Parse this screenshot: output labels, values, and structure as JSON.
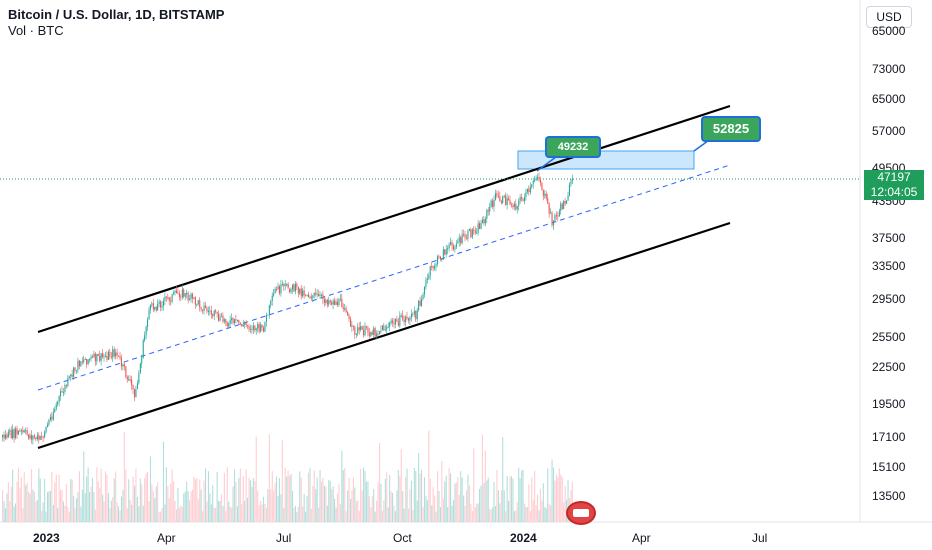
{
  "header": {
    "title": "Bitcoin / U.S. Dollar, 1D, BITSTAMP",
    "volume_label": "Vol · BTC"
  },
  "currency_button": "USD",
  "price_axis": [
    "65000",
    "73000",
    "65000",
    "57000",
    "49500",
    "43500",
    "37500",
    "33500",
    "29500",
    "25500",
    "22500",
    "19500",
    "17100",
    "15100",
    "13500"
  ],
  "time_axis": [
    {
      "label": "2023",
      "bold": true
    },
    {
      "label": "Apr",
      "bold": false
    },
    {
      "label": "Jul",
      "bold": false
    },
    {
      "label": "Oct",
      "bold": false
    },
    {
      "label": "2024",
      "bold": true
    },
    {
      "label": "Apr",
      "bold": false
    },
    {
      "label": "Jul",
      "bold": false
    }
  ],
  "last_price": {
    "value": "47197",
    "countdown": "12:04:05"
  },
  "callouts": {
    "current_high": "49232",
    "target": "52825"
  },
  "colors": {
    "up": "#26a69a",
    "down": "#ef5350",
    "channel": "#000000",
    "midline": "#2962ff",
    "last_price": "#1e9e5a",
    "zone": "#bbdefb"
  }
}
